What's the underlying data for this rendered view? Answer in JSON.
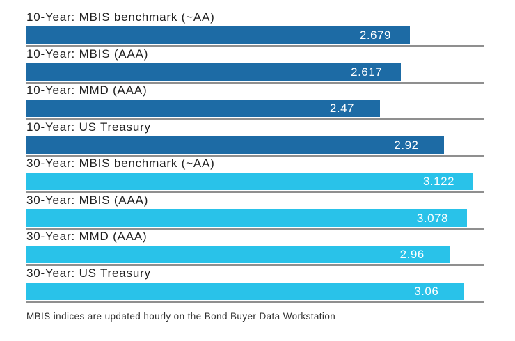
{
  "chart_data": {
    "type": "bar",
    "orientation": "horizontal",
    "title": "",
    "xlabel": "",
    "ylabel": "",
    "xlim": [
      0,
      3.2
    ],
    "legend": "none",
    "grid": "per-row gray baseline under each bar, full chart width",
    "categories": [
      "10-Year: MBIS benchmark (~AA)",
      "10-Year: MBIS (AAA)",
      "10-Year: MMD (AAA)",
      "10-Year: US Treasury",
      "30-Year: MBIS benchmark (~AA)",
      "30-Year: MBIS (AAA)",
      "30-Year: MMD (AAA)",
      "30-Year: US Treasury"
    ],
    "values": [
      2.679,
      2.617,
      2.47,
      2.92,
      3.122,
      3.078,
      2.96,
      3.06
    ],
    "rows": [
      {
        "label": "10-Year: MBIS benchmark (~AA)",
        "value": 2.679,
        "display": "2.679",
        "group": "10-year"
      },
      {
        "label": "10-Year: MBIS (AAA)",
        "value": 2.617,
        "display": "2.617",
        "group": "10-year"
      },
      {
        "label": "10-Year: MMD (AAA)",
        "value": 2.47,
        "display": "2.47",
        "group": "10-year"
      },
      {
        "label": "10-Year: US Treasury",
        "value": 2.92,
        "display": "2.92",
        "group": "10-year"
      },
      {
        "label": "30-Year: MBIS benchmark (~AA)",
        "value": 3.122,
        "display": "3.122",
        "group": "30-year"
      },
      {
        "label": "30-Year: MBIS (AAA)",
        "value": 3.078,
        "display": "3.078",
        "group": "30-year"
      },
      {
        "label": "30-Year: MMD (AAA)",
        "value": 2.96,
        "display": "2.96",
        "group": "30-year"
      },
      {
        "label": "30-Year: US Treasury",
        "value": 3.06,
        "display": "3.06",
        "group": "30-year"
      }
    ],
    "colors": {
      "10-year": "#1d6ba5",
      "30-year": "#29c2e9",
      "baseline": "#8f8f8f",
      "label_text": "#1e1e1e",
      "value_text": "#ffffff",
      "background": "#ffffff"
    }
  },
  "footer": {
    "note": "MBIS indices are updated hourly on the Bond Buyer Data Workstation"
  }
}
